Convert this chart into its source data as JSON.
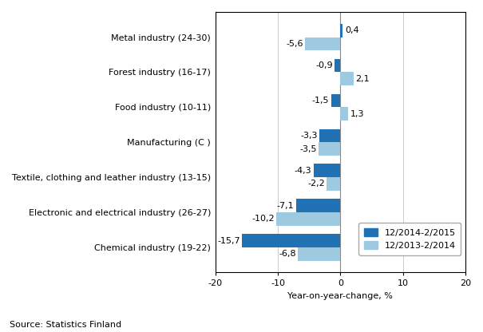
{
  "categories": [
    "Metal industry (24-30)",
    "Forest industry (16-17)",
    "Food industry (10-11)",
    "Manufacturing (C )",
    "Textile, clothing and leather industry (13-15)",
    "Electronic and electrical industry (26-27)",
    "Chemical industry (19-22)"
  ],
  "series1_label": "12/2014-2/2015",
  "series2_label": "12/2013-2/2014",
  "series1_values": [
    0.4,
    -0.9,
    -1.5,
    -3.3,
    -4.3,
    -7.1,
    -15.7
  ],
  "series2_values": [
    -5.6,
    2.1,
    1.3,
    -3.5,
    -2.2,
    -10.2,
    -6.8
  ],
  "series1_color": "#2171B5",
  "series2_color": "#9ECAE1",
  "xlabel": "Year-on-year-change, %",
  "xlim": [
    -20,
    20
  ],
  "xticks": [
    -20,
    -10,
    0,
    10,
    20
  ],
  "source": "Source: Statistics Finland",
  "bar_height": 0.38,
  "label_fontsize": 8,
  "tick_fontsize": 8,
  "annotation_fontsize": 8
}
